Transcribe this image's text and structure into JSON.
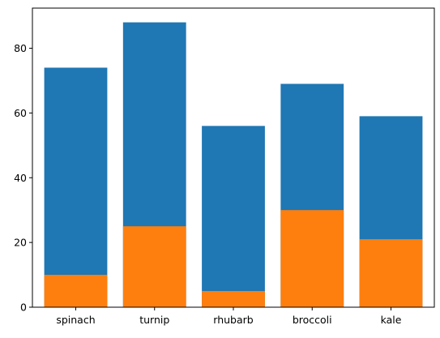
{
  "chart_data": {
    "type": "bar",
    "stacked": false,
    "categories": [
      "spinach",
      "turnip",
      "rhubarb",
      "broccoli",
      "kale"
    ],
    "series": [
      {
        "values": [
          74,
          88,
          56,
          69,
          59
        ],
        "color": "#1f77b4"
      },
      {
        "values": [
          10,
          25,
          5,
          30,
          21
        ],
        "color": "#ff7f0e"
      }
    ],
    "title": "",
    "xlabel": "",
    "ylabel": "",
    "ylim": [
      0,
      92.4
    ],
    "yticks": [
      0,
      20,
      40,
      60,
      80
    ],
    "grid": false,
    "legend": "none"
  }
}
